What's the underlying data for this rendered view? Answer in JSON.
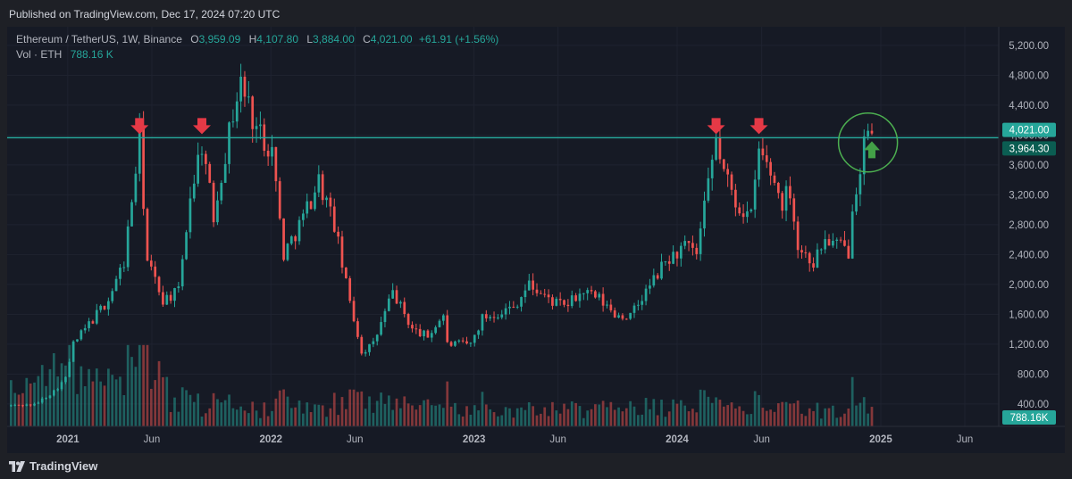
{
  "header": {
    "published": "Published on TradingView.com, Dec 17, 2024 07:20 UTC"
  },
  "legend": {
    "symbol": "Ethereum / TetherUS, 1W, Binance",
    "open_label": "O",
    "open": "3,959.09",
    "high_label": "H",
    "high": "4,107.80",
    "low_label": "L",
    "low": "3,884.00",
    "close_label": "C",
    "close": "4,021.00",
    "change": "+61.91 (+1.56%)",
    "volume_label": "Vol · ETH",
    "volume": "788.16 K"
  },
  "footer": {
    "brand": "TradingView"
  },
  "colors": {
    "up": "#26a69a",
    "down": "#ef5350",
    "level_line": "#26a69a",
    "marker_down": "#e53946",
    "marker_up": "#43a047",
    "circle": "#4caf50"
  },
  "chart_data": {
    "type": "candlestick",
    "timeframe": "1W",
    "y_axis_ticks": [
      400,
      800,
      1200,
      1600,
      2000,
      2400,
      2800,
      3200,
      3600,
      4000,
      4400,
      4800,
      5200
    ],
    "y_axis_tick_labels": [
      "400.00",
      "800.00",
      "1,200.00",
      "1,600.00",
      "2,000.00",
      "2,400.00",
      "2,800.00",
      "3,200.00",
      "3,600.00",
      "4,000.00",
      "4,400.00",
      "4,800.00",
      "5,200.00"
    ],
    "ylim": [
      100,
      5450
    ],
    "x_axis_labels": [
      {
        "date": "2021-01-01",
        "label": "2021"
      },
      {
        "date": "2021-06-01",
        "label": "Jun"
      },
      {
        "date": "2022-01-01",
        "label": "2022"
      },
      {
        "date": "2022-06-01",
        "label": "Jun"
      },
      {
        "date": "2023-01-01",
        "label": "2023"
      },
      {
        "date": "2023-06-01",
        "label": "Jun"
      },
      {
        "date": "2024-01-01",
        "label": "2024"
      },
      {
        "date": "2024-06-01",
        "label": "Jun"
      },
      {
        "date": "2025-01-01",
        "label": "2025"
      },
      {
        "date": "2025-06-01",
        "label": "Jun"
      }
    ],
    "xlim": [
      "2020-09-14",
      "2025-08-01"
    ],
    "price_labels": [
      {
        "value": 4021.0,
        "label": "4,021.00"
      },
      {
        "value": 3964.3,
        "label": "3,964.30"
      }
    ],
    "volume_label": "788.16K",
    "horizontal_level": 3964.3,
    "resistance_markers": [
      {
        "date": "2021-05-10",
        "type": "down-arrow"
      },
      {
        "date": "2021-08-30",
        "type": "down-arrow"
      },
      {
        "date": "2024-03-11",
        "type": "down-arrow"
      },
      {
        "date": "2024-05-27",
        "type": "down-arrow"
      },
      {
        "date": "2024-12-16",
        "type": "up-arrow"
      }
    ],
    "highlight_circle": {
      "date": "2024-12-09",
      "value": 3900
    },
    "anchors": [
      [
        "2020-09-21",
        380
      ],
      [
        "2020-11-02",
        390
      ],
      [
        "2020-12-07",
        570
      ],
      [
        "2020-12-28",
        740
      ],
      [
        "2021-01-11",
        1200
      ],
      [
        "2021-02-22",
        1600
      ],
      [
        "2021-03-15",
        1800
      ],
      [
        "2021-04-12",
        2300
      ],
      [
        "2021-05-10",
        3950
      ],
      [
        "2021-05-24",
        2300
      ],
      [
        "2021-06-21",
        1800
      ],
      [
        "2021-07-19",
        1900
      ],
      [
        "2021-08-09",
        3200
      ],
      [
        "2021-08-30",
        3900
      ],
      [
        "2021-09-20",
        2900
      ],
      [
        "2021-10-04",
        3500
      ],
      [
        "2021-10-25",
        4300
      ],
      [
        "2021-11-08",
        4700
      ],
      [
        "2021-12-06",
        4100
      ],
      [
        "2022-01-03",
        3800
      ],
      [
        "2022-01-24",
        2400
      ],
      [
        "2022-02-28",
        2900
      ],
      [
        "2022-03-28",
        3400
      ],
      [
        "2022-04-25",
        2800
      ],
      [
        "2022-05-16",
        2000
      ],
      [
        "2022-06-13",
        1100
      ],
      [
        "2022-07-04",
        1200
      ],
      [
        "2022-08-08",
        1900
      ],
      [
        "2022-09-12",
        1400
      ],
      [
        "2022-10-10",
        1300
      ],
      [
        "2022-11-07",
        1600
      ],
      [
        "2022-11-14",
        1200
      ],
      [
        "2022-12-26",
        1200
      ],
      [
        "2023-01-16",
        1550
      ],
      [
        "2023-03-13",
        1700
      ],
      [
        "2023-04-10",
        2000
      ],
      [
        "2023-05-15",
        1800
      ],
      [
        "2023-06-12",
        1700
      ],
      [
        "2023-07-17",
        1900
      ],
      [
        "2023-08-14",
        1800
      ],
      [
        "2023-09-11",
        1600
      ],
      [
        "2023-10-09",
        1570
      ],
      [
        "2023-11-06",
        1900
      ],
      [
        "2023-12-11",
        2300
      ],
      [
        "2024-01-15",
        2500
      ],
      [
        "2024-02-05",
        2400
      ],
      [
        "2024-02-26",
        3300
      ],
      [
        "2024-03-11",
        3950
      ],
      [
        "2024-03-25",
        3500
      ],
      [
        "2024-04-15",
        3100
      ],
      [
        "2024-05-13",
        2900
      ],
      [
        "2024-05-27",
        3800
      ],
      [
        "2024-06-17",
        3500
      ],
      [
        "2024-07-08",
        3100
      ],
      [
        "2024-07-22",
        3300
      ],
      [
        "2024-08-05",
        2500
      ],
      [
        "2024-09-02",
        2300
      ],
      [
        "2024-09-23",
        2600
      ],
      [
        "2024-10-21",
        2500
      ],
      [
        "2024-11-04",
        2450
      ],
      [
        "2024-11-11",
        3100
      ],
      [
        "2024-11-25",
        3600
      ],
      [
        "2024-12-02",
        3900
      ],
      [
        "2024-12-09",
        3950
      ],
      [
        "2024-12-16",
        4021
      ]
    ],
    "volume_axis_max": 2000
  }
}
